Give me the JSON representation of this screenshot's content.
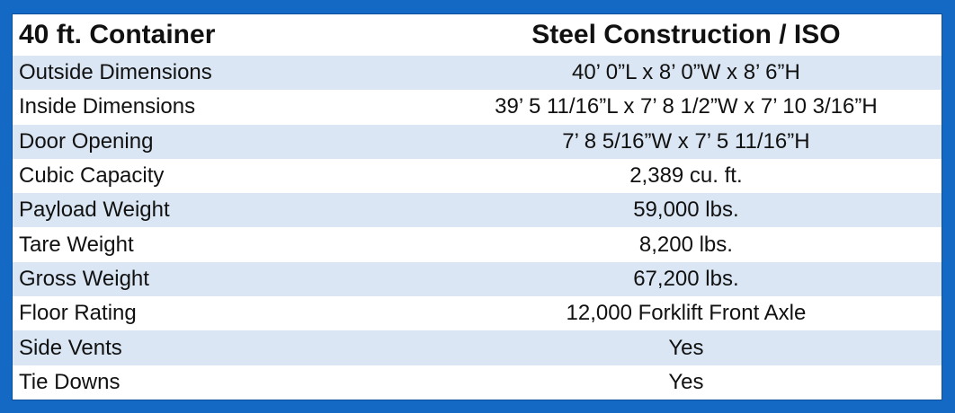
{
  "header": {
    "left": "40 ft. Container",
    "right": "Steel Construction / ISO"
  },
  "rows": [
    {
      "label": "Outside Dimensions",
      "value": "40’ 0”L x 8’ 0”W x 8’ 6”H"
    },
    {
      "label": "Inside Dimensions",
      "value": "39’ 5 11/16”L x 7’ 8 1/2”W x 7’ 10 3/16”H"
    },
    {
      "label": "Door Opening",
      "value": "7’ 8 5/16”W x 7’ 5 11/16”H"
    },
    {
      "label": "Cubic Capacity",
      "value": "2,389 cu. ft."
    },
    {
      "label": "Payload Weight",
      "value": "59,000 lbs."
    },
    {
      "label": "Tare Weight",
      "value": "8,200 lbs."
    },
    {
      "label": "Gross Weight",
      "value": "67,200 lbs."
    },
    {
      "label": "Floor Rating",
      "value": "12,000 Forklift Front Axle"
    },
    {
      "label": "Side Vents",
      "value": "Yes"
    },
    {
      "label": "Tie Downs",
      "value": "Yes"
    }
  ],
  "colors": {
    "border": "#1469c4",
    "stripe": "#dae6f3"
  }
}
